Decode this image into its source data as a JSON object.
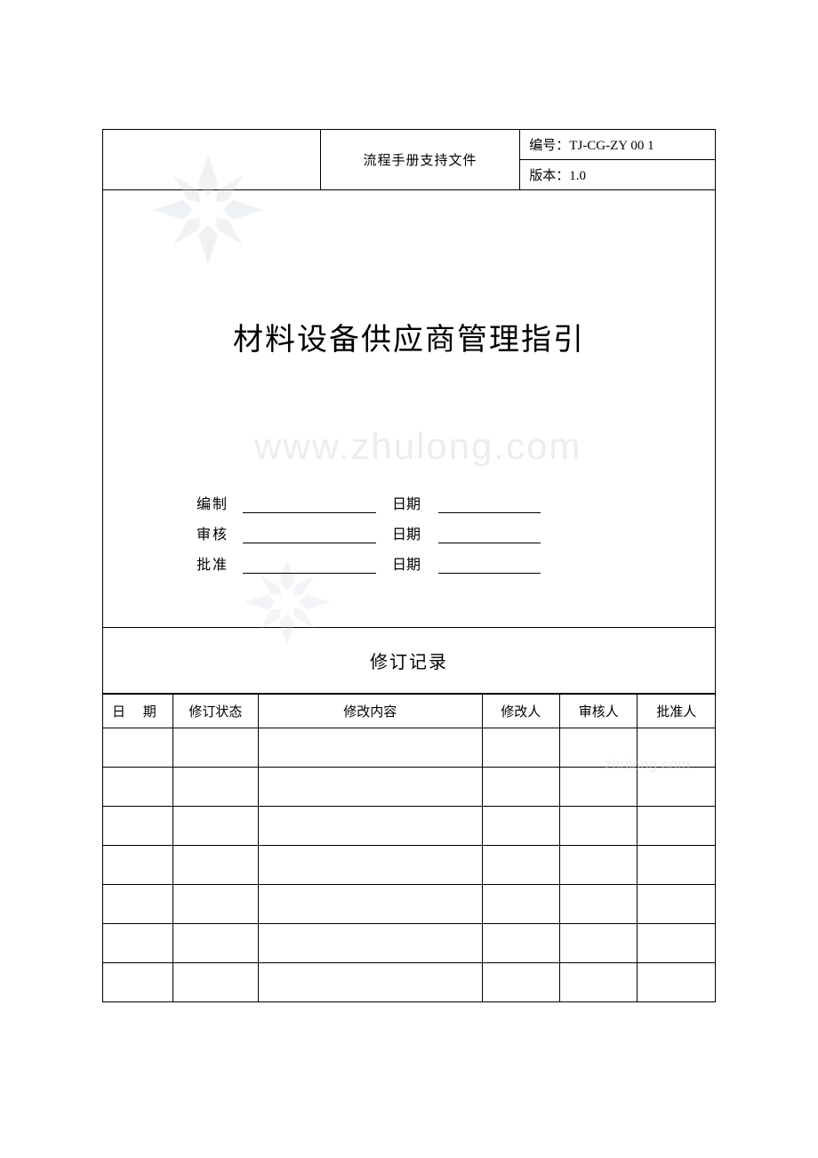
{
  "header": {
    "center_title": "流程手册支持文件",
    "doc_no_label": "编号：",
    "doc_no_value": "TJ-CG-ZY 00 1",
    "version_label": "版本：",
    "version_value": "1.0"
  },
  "main_title": "材料设备供应商管理指引",
  "signatures": {
    "rows": [
      {
        "label": "编制",
        "date_label": "日期"
      },
      {
        "label": "审核",
        "date_label": "日期"
      },
      {
        "label": "批准",
        "date_label": "日期"
      }
    ]
  },
  "revision": {
    "title": "修订记录",
    "columns": [
      "日  期",
      "修订状态",
      "修改内容",
      "修改人",
      "审核人",
      "批准人"
    ],
    "row_count": 7
  },
  "watermark": {
    "url_text": "www.zhulong.com",
    "small_text": "zhulong.com",
    "logo_color": "#c9d1de"
  },
  "style": {
    "page_bg": "#ffffff",
    "border_color": "#000000",
    "title_fontsize": 34,
    "header_fontsize": 18,
    "body_fontsize": 15,
    "watermark_color": "#d9dde3"
  }
}
